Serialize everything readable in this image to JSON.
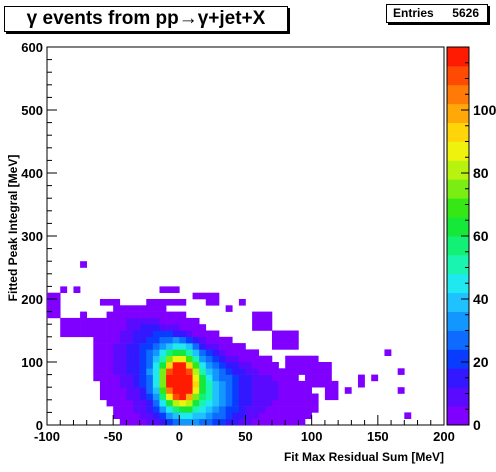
{
  "canvas": {
    "title": "γ events from pp→γ+jet+X",
    "stats": {
      "label": "Entries",
      "value": "5626"
    }
  },
  "chart_data": {
    "type": "heatmap",
    "title": "γ events from pp→γ+jet+X",
    "xlabel": "Fit Max Residual Sum [MeV]",
    "ylabel": "Fitted Peak Integral [MeV]",
    "xlim": [
      -100,
      200
    ],
    "ylim": [
      0,
      600
    ],
    "x_ticks": [
      -100,
      -50,
      0,
      50,
      100,
      150,
      200
    ],
    "y_ticks": [
      0,
      100,
      200,
      300,
      400,
      500,
      600
    ],
    "zlim": [
      0,
      120
    ],
    "z_ticks": [
      0,
      20,
      40,
      60,
      80,
      100
    ],
    "z_tick_labels": [
      "0",
      "20",
      "40",
      "60",
      "80",
      "100"
    ],
    "bin_width": [
      5,
      10
    ],
    "entries": 5626,
    "palette": [
      "#7f00ff",
      "#5a0aff",
      "#3318ff",
      "#0a3cff",
      "#0d6cff",
      "#1297ff",
      "#1fc2ff",
      "#20e8f0",
      "#19f5b0",
      "#12f075",
      "#16e83a",
      "#35e815",
      "#7aee12",
      "#b8f20f",
      "#eef20c",
      "#ffd50a",
      "#ffa808",
      "#ff7a06",
      "#ff4a04",
      "#ff1a02"
    ],
    "cores": [
      {
        "x": 0,
        "y": 72,
        "amp": 110,
        "sx": 9,
        "sy": 28
      },
      {
        "x": 12,
        "y": 45,
        "amp": 40,
        "sx": 20,
        "sy": 40
      },
      {
        "x": -12,
        "y": 110,
        "amp": 25,
        "sx": 22,
        "sy": 45
      },
      {
        "x": 40,
        "y": 60,
        "amp": 10,
        "sx": 32,
        "sy": 45
      }
    ],
    "tails": [
      {
        "x": -100,
        "y": 170,
        "val": 3,
        "w": 2,
        "h": 4
      },
      {
        "x": -90,
        "y": 140,
        "val": 3,
        "w": 8,
        "h": 3
      },
      {
        "x": -75,
        "y": 250,
        "val": 2,
        "w": 1,
        "h": 1
      },
      {
        "x": -90,
        "y": 210,
        "val": 2,
        "w": 1,
        "h": 1
      },
      {
        "x": -80,
        "y": 210,
        "val": 2,
        "w": 1,
        "h": 1
      },
      {
        "x": -75,
        "y": 160,
        "val": 2,
        "w": 1,
        "h": 2
      },
      {
        "x": -60,
        "y": 190,
        "val": 2,
        "w": 3,
        "h": 1
      },
      {
        "x": -45,
        "y": 160,
        "val": 2,
        "w": 3,
        "h": 2
      },
      {
        "x": -25,
        "y": 190,
        "val": 2,
        "w": 6,
        "h": 1
      },
      {
        "x": -15,
        "y": 210,
        "val": 2,
        "w": 3,
        "h": 1
      },
      {
        "x": 10,
        "y": 200,
        "val": 2,
        "w": 2,
        "h": 1
      },
      {
        "x": 20,
        "y": 190,
        "val": 2,
        "w": 2,
        "h": 2
      },
      {
        "x": 35,
        "y": 180,
        "val": 2,
        "w": 1,
        "h": 1
      },
      {
        "x": 45,
        "y": 190,
        "val": 2,
        "w": 1,
        "h": 1
      },
      {
        "x": 55,
        "y": 150,
        "val": 2,
        "w": 3,
        "h": 3
      },
      {
        "x": 70,
        "y": 120,
        "val": 2,
        "w": 4,
        "h": 3
      },
      {
        "x": 80,
        "y": 80,
        "val": 3,
        "w": 5,
        "h": 3
      },
      {
        "x": 95,
        "y": 60,
        "val": 3,
        "w": 4,
        "h": 4
      },
      {
        "x": 110,
        "y": 40,
        "val": 2,
        "w": 2,
        "h": 3
      },
      {
        "x": 125,
        "y": 50,
        "val": 2,
        "w": 1,
        "h": 1
      },
      {
        "x": 135,
        "y": 60,
        "val": 2,
        "w": 1,
        "h": 2
      },
      {
        "x": 145,
        "y": 70,
        "val": 2,
        "w": 1,
        "h": 1
      },
      {
        "x": 155,
        "y": 110,
        "val": 2,
        "w": 1,
        "h": 1
      },
      {
        "x": 165,
        "y": 80,
        "val": 2,
        "w": 1,
        "h": 1
      },
      {
        "x": 165,
        "y": 50,
        "val": 2,
        "w": 1,
        "h": 1
      },
      {
        "x": 170,
        "y": 10,
        "val": 2,
        "w": 1,
        "h": 1
      },
      {
        "x": 100,
        "y": 20,
        "val": 2,
        "w": 1,
        "h": 1
      }
    ]
  }
}
